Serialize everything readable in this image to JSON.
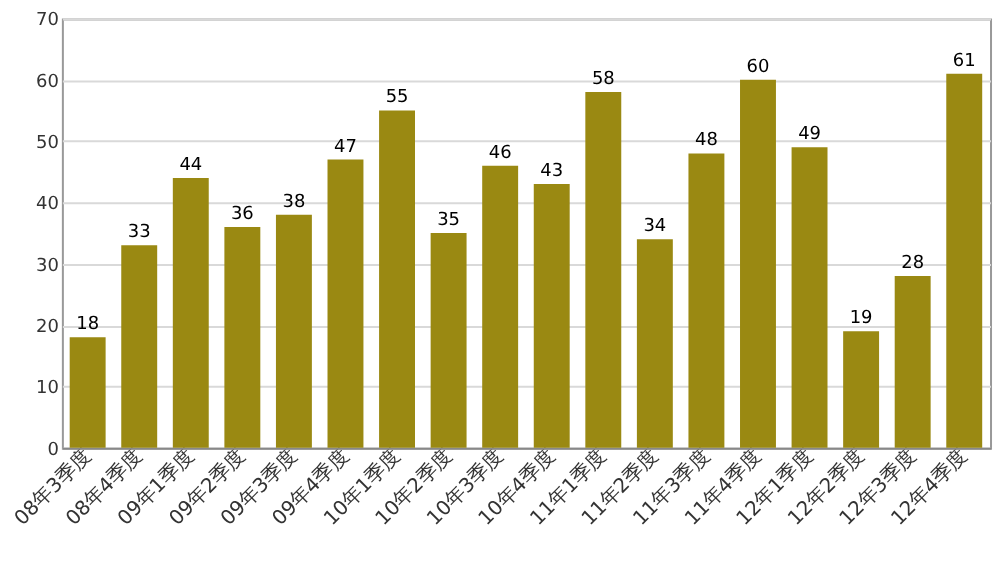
{
  "chart_data": {
    "type": "bar",
    "categories": [
      "08年3季度",
      "08年4季度",
      "09年1季度",
      "09年2季度",
      "09年3季度",
      "09年4季度",
      "10年1季度",
      "10年2季度",
      "10年3季度",
      "10年4季度",
      "11年1季度",
      "11年2季度",
      "11年3季度",
      "11年4季度",
      "12年1季度",
      "12年2季度",
      "12年3季度",
      "12年4季度"
    ],
    "values": [
      18,
      33,
      44,
      36,
      38,
      47,
      55,
      35,
      46,
      43,
      58,
      34,
      48,
      60,
      49,
      19,
      28,
      61
    ],
    "color": "#9a8912",
    "ylim": [
      0,
      70
    ],
    "yticks": [
      0,
      10,
      20,
      30,
      40,
      50,
      60,
      70
    ],
    "grid": "y",
    "data_labels": true
  }
}
